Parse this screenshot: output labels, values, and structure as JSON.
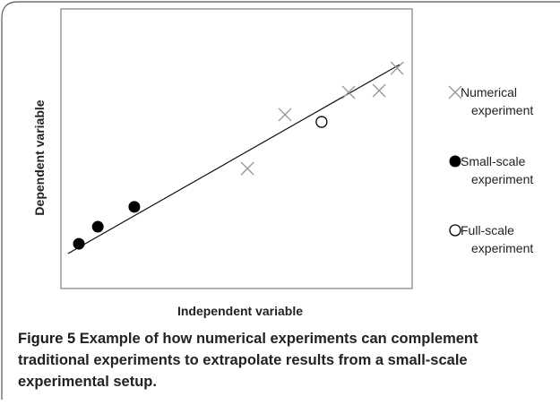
{
  "chart_data": {
    "type": "scatter",
    "xlabel": "Independent variable",
    "ylabel": "Dependent variable",
    "xlim": [
      0,
      100
    ],
    "ylim": [
      0,
      100
    ],
    "series": [
      {
        "name": "Numerical experiment",
        "color": "#9a9a9a",
        "marker": "x",
        "x": [
          53.1,
          63.8,
          81.9,
          90.6,
          95.7
        ],
        "values": [
          42.9,
          62.2,
          70.2,
          70.8,
          78.8
        ]
      },
      {
        "name": "Small-scale experiment",
        "color": "#000000",
        "marker": "filled-circle",
        "x": [
          5.1,
          10.5,
          20.9
        ],
        "values": [
          16.0,
          22.1,
          29.2
        ]
      },
      {
        "name": "Full-scale experiment",
        "color": "#000000",
        "marker": "open-circle",
        "x": [
          74.2
        ],
        "values": [
          59.6
        ]
      }
    ],
    "trendline": {
      "x": [
        2.0,
        96.4
      ],
      "values": [
        12.5,
        80.1
      ]
    }
  },
  "caption": {
    "label": "Figure 5",
    "text": "Example of how numerical experiments can complement traditional experiments to extrapolate results from a small-scale experimental setup."
  }
}
